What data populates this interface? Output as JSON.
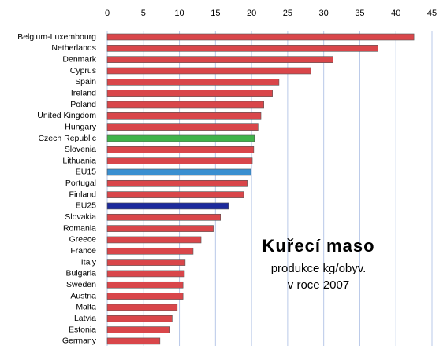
{
  "chart_data": {
    "type": "hbar",
    "title": "Kuřecí maso",
    "subtitle": "produkce kg/obyv.",
    "annotation": "v roce 2007",
    "categories": [
      "Belgium-Luxembourg",
      "Netherlands",
      "Denmark",
      "Cyprus",
      "Spain",
      "Ireland",
      "Poland",
      "United Kingdom",
      "Hungary",
      "Czech Republic",
      "Slovenia",
      "Lithuania",
      "EU15",
      "Portugal",
      "Finland",
      "EU25",
      "Slovakia",
      "Romania",
      "Greece",
      "France",
      "Italy",
      "Bulgaria",
      "Sweden",
      "Austria",
      "Malta",
      "Latvia",
      "Estonia",
      "Germany"
    ],
    "values": [
      42.5,
      37.5,
      31.3,
      28.2,
      23.8,
      22.9,
      21.7,
      21.3,
      20.9,
      20.4,
      20.3,
      20.1,
      19.9,
      19.4,
      18.9,
      16.8,
      15.7,
      14.7,
      13.0,
      11.9,
      10.8,
      10.7,
      10.5,
      10.5,
      9.7,
      9.0,
      8.7,
      7.3
    ],
    "colors": [
      "#d9464a",
      "#d9464a",
      "#d9464a",
      "#d9464a",
      "#d9464a",
      "#d9464a",
      "#d9464a",
      "#d9464a",
      "#d9464a",
      "#3fb34a",
      "#d9464a",
      "#d9464a",
      "#3a8fd0",
      "#d9464a",
      "#d9464a",
      "#1c2a9c",
      "#d9464a",
      "#d9464a",
      "#d9464a",
      "#d9464a",
      "#d9464a",
      "#d9464a",
      "#d9464a",
      "#d9464a",
      "#d9464a",
      "#d9464a",
      "#d9464a",
      "#d9464a"
    ],
    "xlim": [
      0,
      45
    ],
    "xticks": [
      0,
      5,
      10,
      15,
      20,
      25,
      30,
      35,
      40,
      45
    ],
    "grid": true
  }
}
